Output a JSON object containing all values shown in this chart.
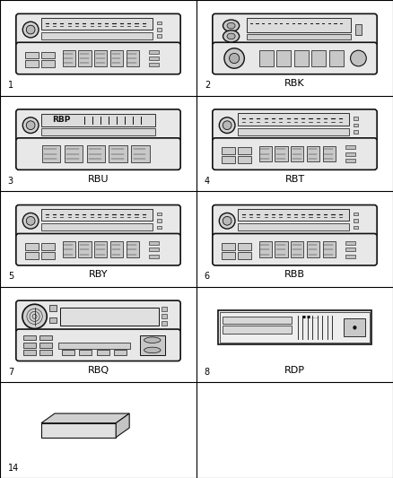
{
  "bg_color": "#ffffff",
  "fig_width": 4.38,
  "fig_height": 5.33,
  "cells": [
    {
      "row": 0,
      "col": 0,
      "number": "1",
      "label": "",
      "type": "radio_type1"
    },
    {
      "row": 0,
      "col": 1,
      "number": "2",
      "label": "RBK",
      "type": "radio_rbk"
    },
    {
      "row": 1,
      "col": 0,
      "number": "3",
      "label": "RBU",
      "type": "radio_rbp"
    },
    {
      "row": 1,
      "col": 1,
      "number": "4",
      "label": "RBT",
      "type": "radio_rbt"
    },
    {
      "row": 2,
      "col": 0,
      "number": "5",
      "label": "RBY",
      "type": "radio_rby"
    },
    {
      "row": 2,
      "col": 1,
      "number": "6",
      "label": "RBB",
      "type": "radio_rbb"
    },
    {
      "row": 3,
      "col": 0,
      "number": "7",
      "label": "RBQ",
      "type": "radio_rbq"
    },
    {
      "row": 3,
      "col": 1,
      "number": "8",
      "label": "RDP",
      "type": "radio_rdp"
    },
    {
      "row": 4,
      "col": 0,
      "number": "14",
      "label": "",
      "type": "box_small"
    }
  ],
  "num_rows": 5,
  "num_cols": 2,
  "lc": "#111111",
  "fc": "#f5f5f5",
  "label_fontsize": 8,
  "number_fontsize": 7
}
